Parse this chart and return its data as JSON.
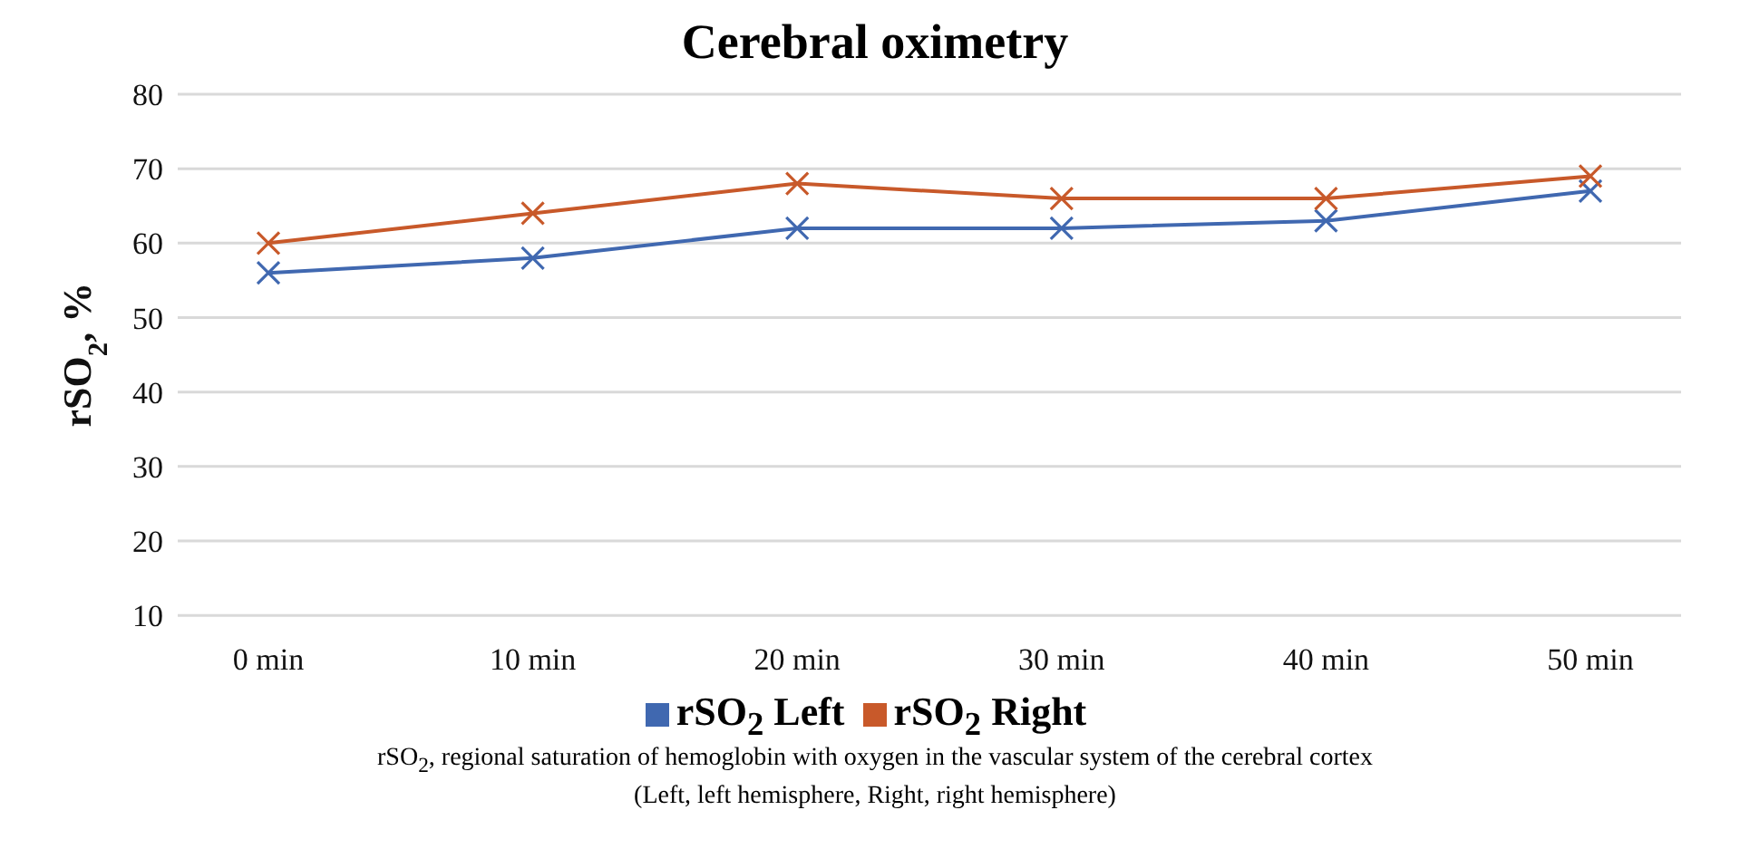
{
  "chart_data": {
    "type": "line",
    "title": "Cerebral oximetry",
    "ylabel": "rSO$_{2}$, %",
    "categories": [
      "0 min",
      "10 min",
      "20 min",
      "30 min",
      "40 min",
      "50 min"
    ],
    "series": [
      {
        "name": "rSO$_{2}$ Left",
        "color": "#4068b0",
        "values": [
          56,
          58,
          62,
          62,
          63,
          67
        ]
      },
      {
        "name": "rSO$_{2}$ Right",
        "color": "#c8592a",
        "values": [
          60,
          64,
          68,
          66,
          66,
          69
        ]
      }
    ],
    "ylim": [
      10,
      80
    ],
    "yticks": [
      10,
      20,
      30,
      40,
      50,
      60,
      70,
      80
    ],
    "grid": "y",
    "legend": "bottom",
    "marker": "cross",
    "line_style": "solid",
    "annotations": [
      "rSO$_{2}$, regional saturation of hemoglobin with oxygen in the vascular system of the cerebral cortex",
      "(Left, left hemisphere, Right, right hemisphere)"
    ]
  }
}
